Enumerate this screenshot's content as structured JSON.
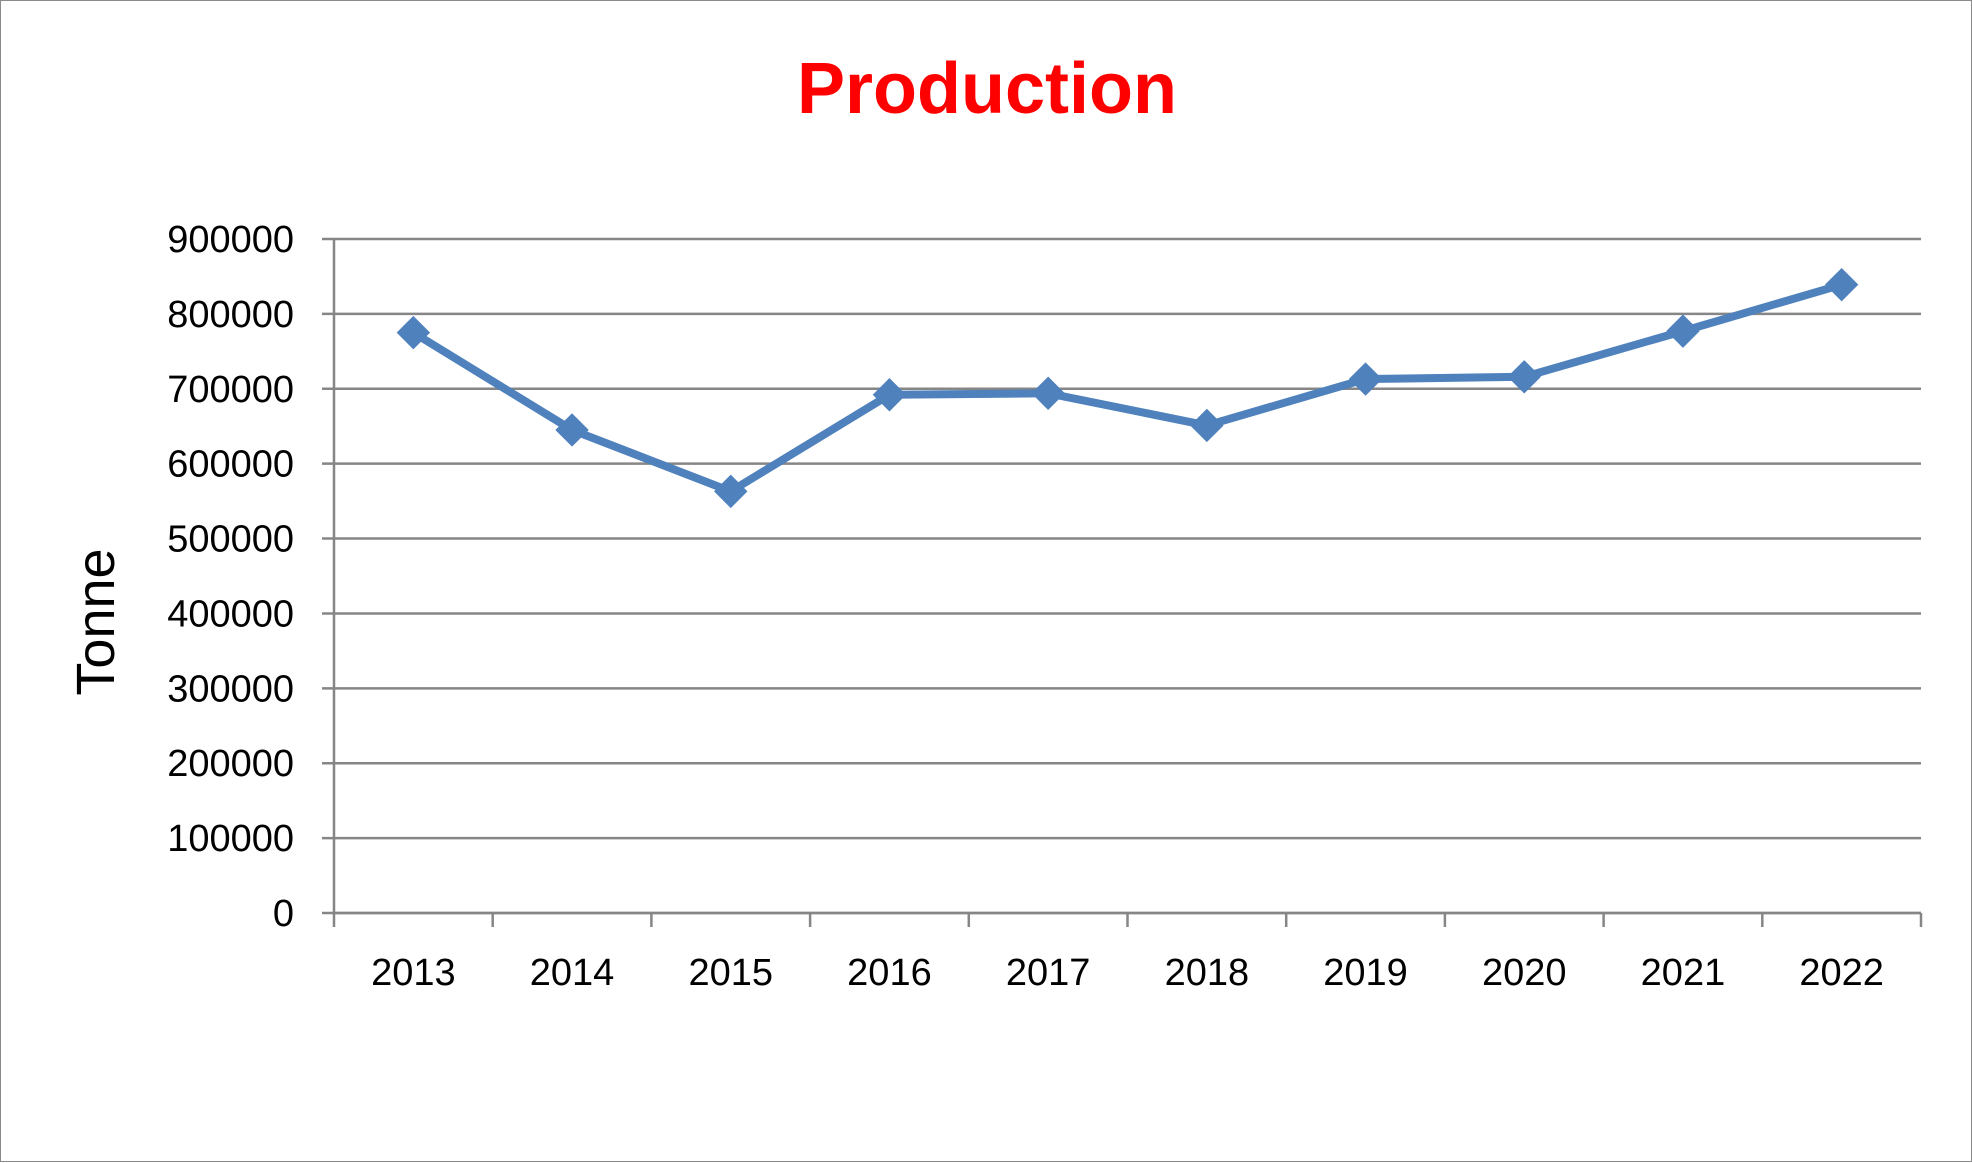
{
  "chart_data": {
    "type": "line",
    "title": "Production",
    "ylabel": "Tonne",
    "xlabel": "",
    "categories": [
      "2013",
      "2014",
      "2015",
      "2016",
      "2017",
      "2018",
      "2019",
      "2020",
      "2021",
      "2022"
    ],
    "series": [
      {
        "values": [
          775000,
          645000,
          563000,
          692000,
          694000,
          651000,
          713000,
          716000,
          777000,
          839000
        ]
      }
    ],
    "ylim": [
      0,
      900000
    ],
    "yticks": [
      0,
      100000,
      200000,
      300000,
      400000,
      500000,
      600000,
      700000,
      800000,
      900000
    ],
    "grid": true,
    "legend": "none",
    "marker": "diamond",
    "colors": {
      "title": "#ff0000",
      "line": "#4f81bd",
      "grid": "#868686",
      "frame": "#8a8a8a"
    }
  }
}
